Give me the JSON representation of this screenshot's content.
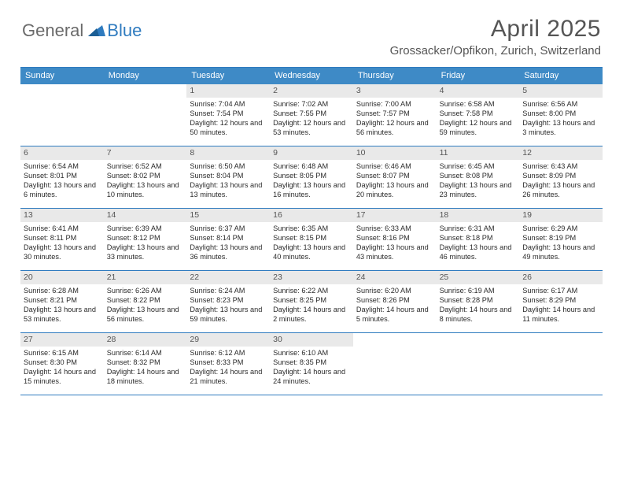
{
  "logo": {
    "general": "General",
    "blue": "Blue"
  },
  "title": "April 2025",
  "location": "Grossacker/Opfikon, Zurich, Switzerland",
  "colors": {
    "header_bg": "#3e8ac6",
    "border": "#2f7bbf",
    "daynum_bg": "#e9e9e9",
    "text": "#2b2b2b",
    "title_text": "#555555"
  },
  "days_of_week": [
    "Sunday",
    "Monday",
    "Tuesday",
    "Wednesday",
    "Thursday",
    "Friday",
    "Saturday"
  ],
  "weeks": [
    [
      {
        "n": "",
        "sunrise": "",
        "sunset": "",
        "daylight": ""
      },
      {
        "n": "",
        "sunrise": "",
        "sunset": "",
        "daylight": ""
      },
      {
        "n": "1",
        "sunrise": "Sunrise: 7:04 AM",
        "sunset": "Sunset: 7:54 PM",
        "daylight": "Daylight: 12 hours and 50 minutes."
      },
      {
        "n": "2",
        "sunrise": "Sunrise: 7:02 AM",
        "sunset": "Sunset: 7:55 PM",
        "daylight": "Daylight: 12 hours and 53 minutes."
      },
      {
        "n": "3",
        "sunrise": "Sunrise: 7:00 AM",
        "sunset": "Sunset: 7:57 PM",
        "daylight": "Daylight: 12 hours and 56 minutes."
      },
      {
        "n": "4",
        "sunrise": "Sunrise: 6:58 AM",
        "sunset": "Sunset: 7:58 PM",
        "daylight": "Daylight: 12 hours and 59 minutes."
      },
      {
        "n": "5",
        "sunrise": "Sunrise: 6:56 AM",
        "sunset": "Sunset: 8:00 PM",
        "daylight": "Daylight: 13 hours and 3 minutes."
      }
    ],
    [
      {
        "n": "6",
        "sunrise": "Sunrise: 6:54 AM",
        "sunset": "Sunset: 8:01 PM",
        "daylight": "Daylight: 13 hours and 6 minutes."
      },
      {
        "n": "7",
        "sunrise": "Sunrise: 6:52 AM",
        "sunset": "Sunset: 8:02 PM",
        "daylight": "Daylight: 13 hours and 10 minutes."
      },
      {
        "n": "8",
        "sunrise": "Sunrise: 6:50 AM",
        "sunset": "Sunset: 8:04 PM",
        "daylight": "Daylight: 13 hours and 13 minutes."
      },
      {
        "n": "9",
        "sunrise": "Sunrise: 6:48 AM",
        "sunset": "Sunset: 8:05 PM",
        "daylight": "Daylight: 13 hours and 16 minutes."
      },
      {
        "n": "10",
        "sunrise": "Sunrise: 6:46 AM",
        "sunset": "Sunset: 8:07 PM",
        "daylight": "Daylight: 13 hours and 20 minutes."
      },
      {
        "n": "11",
        "sunrise": "Sunrise: 6:45 AM",
        "sunset": "Sunset: 8:08 PM",
        "daylight": "Daylight: 13 hours and 23 minutes."
      },
      {
        "n": "12",
        "sunrise": "Sunrise: 6:43 AM",
        "sunset": "Sunset: 8:09 PM",
        "daylight": "Daylight: 13 hours and 26 minutes."
      }
    ],
    [
      {
        "n": "13",
        "sunrise": "Sunrise: 6:41 AM",
        "sunset": "Sunset: 8:11 PM",
        "daylight": "Daylight: 13 hours and 30 minutes."
      },
      {
        "n": "14",
        "sunrise": "Sunrise: 6:39 AM",
        "sunset": "Sunset: 8:12 PM",
        "daylight": "Daylight: 13 hours and 33 minutes."
      },
      {
        "n": "15",
        "sunrise": "Sunrise: 6:37 AM",
        "sunset": "Sunset: 8:14 PM",
        "daylight": "Daylight: 13 hours and 36 minutes."
      },
      {
        "n": "16",
        "sunrise": "Sunrise: 6:35 AM",
        "sunset": "Sunset: 8:15 PM",
        "daylight": "Daylight: 13 hours and 40 minutes."
      },
      {
        "n": "17",
        "sunrise": "Sunrise: 6:33 AM",
        "sunset": "Sunset: 8:16 PM",
        "daylight": "Daylight: 13 hours and 43 minutes."
      },
      {
        "n": "18",
        "sunrise": "Sunrise: 6:31 AM",
        "sunset": "Sunset: 8:18 PM",
        "daylight": "Daylight: 13 hours and 46 minutes."
      },
      {
        "n": "19",
        "sunrise": "Sunrise: 6:29 AM",
        "sunset": "Sunset: 8:19 PM",
        "daylight": "Daylight: 13 hours and 49 minutes."
      }
    ],
    [
      {
        "n": "20",
        "sunrise": "Sunrise: 6:28 AM",
        "sunset": "Sunset: 8:21 PM",
        "daylight": "Daylight: 13 hours and 53 minutes."
      },
      {
        "n": "21",
        "sunrise": "Sunrise: 6:26 AM",
        "sunset": "Sunset: 8:22 PM",
        "daylight": "Daylight: 13 hours and 56 minutes."
      },
      {
        "n": "22",
        "sunrise": "Sunrise: 6:24 AM",
        "sunset": "Sunset: 8:23 PM",
        "daylight": "Daylight: 13 hours and 59 minutes."
      },
      {
        "n": "23",
        "sunrise": "Sunrise: 6:22 AM",
        "sunset": "Sunset: 8:25 PM",
        "daylight": "Daylight: 14 hours and 2 minutes."
      },
      {
        "n": "24",
        "sunrise": "Sunrise: 6:20 AM",
        "sunset": "Sunset: 8:26 PM",
        "daylight": "Daylight: 14 hours and 5 minutes."
      },
      {
        "n": "25",
        "sunrise": "Sunrise: 6:19 AM",
        "sunset": "Sunset: 8:28 PM",
        "daylight": "Daylight: 14 hours and 8 minutes."
      },
      {
        "n": "26",
        "sunrise": "Sunrise: 6:17 AM",
        "sunset": "Sunset: 8:29 PM",
        "daylight": "Daylight: 14 hours and 11 minutes."
      }
    ],
    [
      {
        "n": "27",
        "sunrise": "Sunrise: 6:15 AM",
        "sunset": "Sunset: 8:30 PM",
        "daylight": "Daylight: 14 hours and 15 minutes."
      },
      {
        "n": "28",
        "sunrise": "Sunrise: 6:14 AM",
        "sunset": "Sunset: 8:32 PM",
        "daylight": "Daylight: 14 hours and 18 minutes."
      },
      {
        "n": "29",
        "sunrise": "Sunrise: 6:12 AM",
        "sunset": "Sunset: 8:33 PM",
        "daylight": "Daylight: 14 hours and 21 minutes."
      },
      {
        "n": "30",
        "sunrise": "Sunrise: 6:10 AM",
        "sunset": "Sunset: 8:35 PM",
        "daylight": "Daylight: 14 hours and 24 minutes."
      },
      {
        "n": "",
        "sunrise": "",
        "sunset": "",
        "daylight": ""
      },
      {
        "n": "",
        "sunrise": "",
        "sunset": "",
        "daylight": ""
      },
      {
        "n": "",
        "sunrise": "",
        "sunset": "",
        "daylight": ""
      }
    ]
  ]
}
